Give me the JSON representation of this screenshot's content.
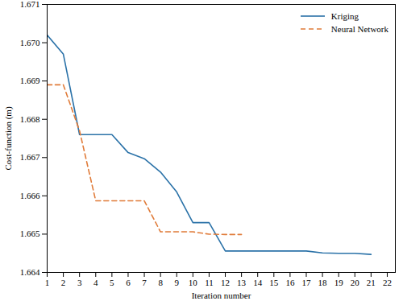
{
  "chart_data": {
    "type": "line",
    "x_label": "Iteration number",
    "y_label": "Cost-function (m)",
    "x": [
      1,
      2,
      3,
      4,
      5,
      6,
      7,
      8,
      9,
      10,
      11,
      12,
      13,
      14,
      15,
      16,
      17,
      18,
      19,
      20,
      21
    ],
    "series": [
      {
        "name": "Kriging",
        "color": "#2b72a8",
        "line_style": "solid",
        "values": [
          1.6702,
          1.6697,
          1.6676,
          1.6676,
          1.6676,
          1.66713,
          1.66697,
          1.66662,
          1.6661,
          1.6653,
          1.6653,
          1.66456,
          1.66456,
          1.66456,
          1.66456,
          1.66456,
          1.66456,
          1.66451,
          1.6645,
          1.6645,
          1.66447
        ]
      },
      {
        "name": "Neural Network",
        "color": "#e07b39",
        "line_style": "dashed",
        "values": [
          1.6689,
          1.6689,
          1.6677,
          1.66587,
          1.66587,
          1.66587,
          1.66587,
          1.66506,
          1.66506,
          1.66506,
          1.665,
          1.66499,
          1.66499,
          null,
          null,
          null,
          null,
          null,
          null,
          null,
          null
        ]
      }
    ],
    "xlim": [
      1,
      22.5
    ],
    "xticks": [
      1,
      2,
      3,
      4,
      5,
      6,
      7,
      8,
      9,
      10,
      11,
      12,
      13,
      14,
      15,
      16,
      17,
      18,
      19,
      20,
      21,
      22
    ],
    "ylim": [
      1.664,
      1.671
    ],
    "yticks": [
      1.664,
      1.665,
      1.666,
      1.667,
      1.668,
      1.669,
      {
        "value": 1.67,
        "label": "1.670"
      },
      1.671
    ],
    "grid": false,
    "legend": "upper right"
  }
}
